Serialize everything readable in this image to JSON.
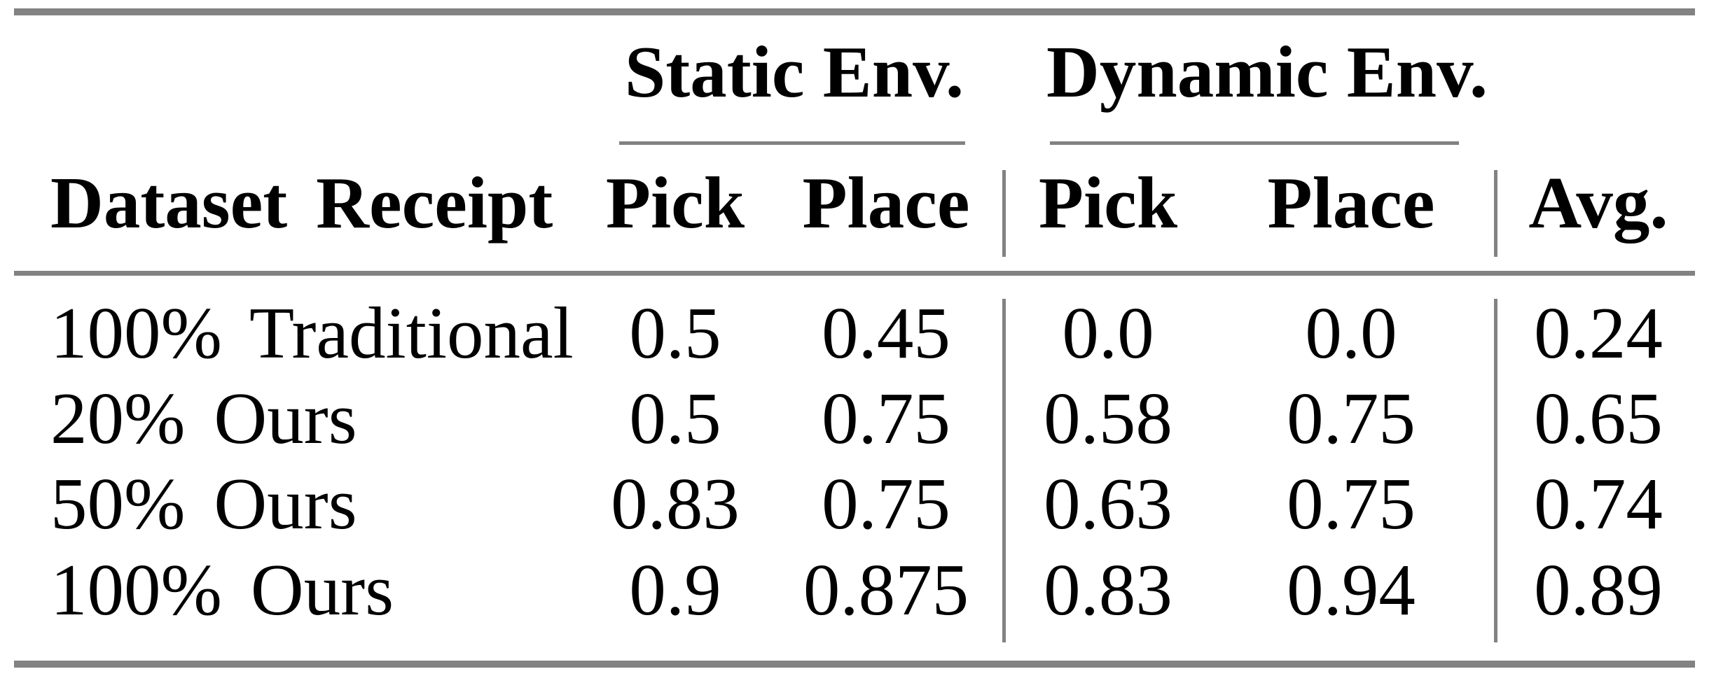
{
  "table": {
    "group_headers": [
      {
        "label": "Static Env."
      },
      {
        "label": "Dynamic Env."
      }
    ],
    "columns": [
      {
        "label": "Dataset Receipt"
      },
      {
        "label": "Pick"
      },
      {
        "label": "Place"
      },
      {
        "label": "Pick"
      },
      {
        "label": "Place"
      },
      {
        "label": "Avg."
      }
    ],
    "rows": [
      {
        "cells": [
          "100% Traditional",
          "0.5",
          "0.45",
          "0.0",
          "0.0",
          "0.24"
        ]
      },
      {
        "cells": [
          "20% Ours",
          "0.5",
          "0.75",
          "0.58",
          "0.75",
          "0.65"
        ]
      },
      {
        "cells": [
          "50% Ours",
          "0.83",
          "0.75",
          "0.63",
          "0.75",
          "0.74"
        ]
      },
      {
        "cells": [
          "100% Ours",
          "0.9",
          "0.875",
          "0.83",
          "0.94",
          "0.89"
        ]
      }
    ],
    "colors": {
      "rule": "#828282",
      "text": "#000000",
      "background": "#ffffff"
    }
  },
  "chart_data": {
    "type": "table",
    "title": "",
    "column_groups": [
      "",
      "Static Env.",
      "Static Env.",
      "Dynamic Env.",
      "Dynamic Env.",
      ""
    ],
    "columns": [
      "Dataset Receipt",
      "Pick",
      "Place",
      "Pick",
      "Place",
      "Avg."
    ],
    "rows": [
      [
        "100% Traditional",
        0.5,
        0.45,
        0.0,
        0.0,
        0.24
      ],
      [
        "20% Ours",
        0.5,
        0.75,
        0.58,
        0.75,
        0.65
      ],
      [
        "50% Ours",
        0.83,
        0.75,
        0.63,
        0.75,
        0.74
      ],
      [
        "100% Ours",
        0.9,
        0.875,
        0.83,
        0.94,
        0.89
      ]
    ]
  }
}
